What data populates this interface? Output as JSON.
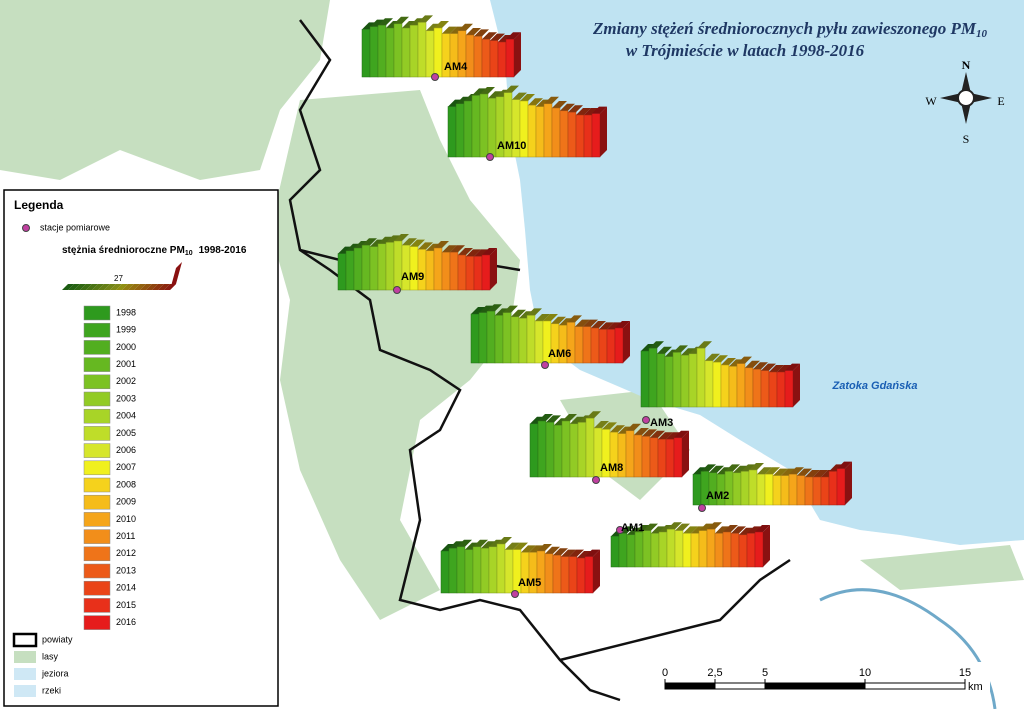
{
  "title": {
    "main": "Zmiany stężeń średniorocznych pyłu zawieszonego PM",
    "subscript": "10",
    "line2": "w Trójmieście w latach 1998-2016"
  },
  "compass": {
    "n": "N",
    "s": "S",
    "w": "W",
    "e": "E"
  },
  "sea_label": "Zatoka Gdańska",
  "legend": {
    "title": "Legenda",
    "station": "stacje pomiarowe",
    "chart_title": "stężnia średnioroczne PM",
    "chart_title_subscript": "10",
    "chart_years": "1998-2016",
    "sample_value": 27,
    "years": [
      "1998",
      "1999",
      "2000",
      "2001",
      "2002",
      "2003",
      "2004",
      "2005",
      "2006",
      "2007",
      "2008",
      "2009",
      "2010",
      "2011",
      "2012",
      "2013",
      "2014",
      "2015",
      "2016"
    ],
    "colors": [
      "#2e9a1e",
      "#3fa51f",
      "#52ae20",
      "#66b821",
      "#7cc223",
      "#92cb25",
      "#a8d427",
      "#bfdd29",
      "#d6e62b",
      "#f0f01e",
      "#f5d21c",
      "#f5bc1a",
      "#f5a51a",
      "#f28e1a",
      "#ef7419",
      "#ec5a19",
      "#ea4418",
      "#e8301a",
      "#e61c1c"
    ],
    "layers": [
      "powiaty",
      "lasy",
      "jeziora",
      "rzeki"
    ]
  },
  "scale": {
    "ticks": [
      0,
      {
        "value": 2.5,
        "label": "2,5"
      },
      5,
      10,
      15
    ],
    "unit": "km"
  },
  "stations": [
    {
      "name": "AM4",
      "values": [
        34,
        36,
        37,
        35,
        38,
        35,
        37,
        39,
        33,
        35,
        31,
        31,
        33,
        30,
        29,
        27,
        26,
        25,
        27
      ]
    },
    {
      "name": "AM10",
      "values": [
        36,
        38,
        40,
        44,
        45,
        42,
        43,
        46,
        41,
        40,
        37,
        36,
        38,
        35,
        33,
        32,
        30,
        30,
        31
      ]
    },
    {
      "name": "AM9",
      "values": [
        26,
        28,
        30,
        32,
        31,
        33,
        34,
        35,
        32,
        31,
        29,
        28,
        30,
        27,
        27,
        25,
        24,
        24,
        25
      ]
    },
    {
      "name": "AM6",
      "values": [
        35,
        36,
        37,
        34,
        36,
        33,
        32,
        34,
        30,
        30,
        28,
        27,
        29,
        26,
        26,
        25,
        24,
        24,
        25
      ]
    },
    {
      "name": "AM3",
      "values": [
        40,
        42,
        38,
        36,
        39,
        37,
        38,
        42,
        33,
        32,
        30,
        29,
        31,
        28,
        27,
        26,
        25,
        25,
        26
      ]
    },
    {
      "name": "AM8",
      "values": [
        38,
        40,
        39,
        37,
        40,
        38,
        39,
        42,
        35,
        34,
        32,
        31,
        33,
        30,
        29,
        28,
        27,
        27,
        28
      ]
    },
    {
      "name": "AM2",
      "values": [
        22,
        24,
        23,
        22,
        24,
        23,
        24,
        25,
        22,
        22,
        21,
        21,
        22,
        21,
        20,
        20,
        20,
        24,
        26
      ]
    },
    {
      "name": "AM1",
      "values": [
        22,
        24,
        23,
        25,
        26,
        24,
        25,
        27,
        26,
        24,
        24,
        26,
        27,
        24,
        25,
        24,
        23,
        24,
        25
      ]
    },
    {
      "name": "AM5",
      "values": [
        30,
        32,
        33,
        31,
        33,
        32,
        33,
        35,
        31,
        31,
        29,
        29,
        30,
        28,
        27,
        26,
        26,
        25,
        26
      ]
    }
  ]
}
